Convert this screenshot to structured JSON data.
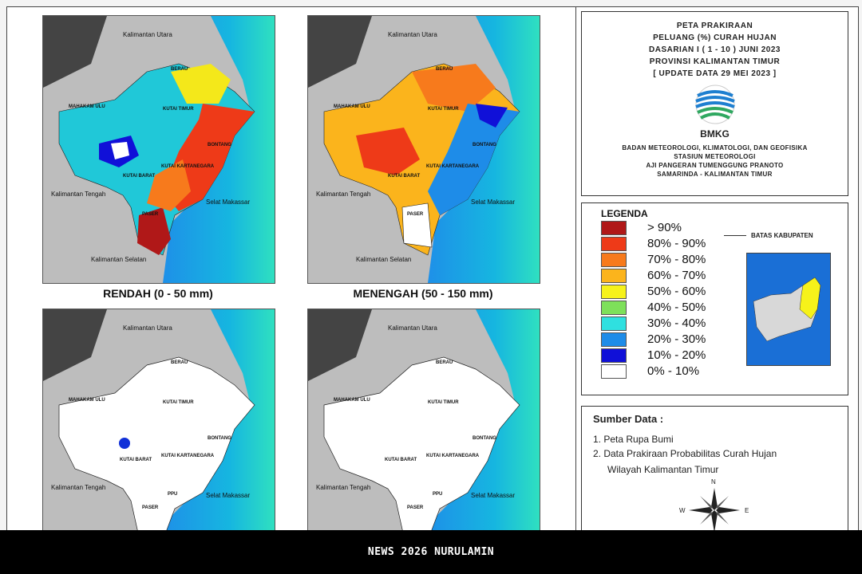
{
  "maps": {
    "kalimantan_utara": "Kalimantan Utara",
    "kalimantan_tengah": "Kalimantan Tengah",
    "kalimantan_selatan": "Kalimantan Selatan",
    "selat_makassar": "Selat Makassar",
    "berau": "BERAU",
    "mahakam_ulu": "MAHAKAM ULU",
    "kutai_timur": "KUTAI TIMUR",
    "kutai_kartanegara": "KUTAI KARTANEGARA",
    "kutai_barat": "KUTAI BARAT",
    "bontang": "BONTANG",
    "paser": "PASER",
    "ppu": "PPU",
    "caption_rendah": "RENDAH (0 - 50 mm)",
    "caption_menengah": "MENENGAH (50 - 150 mm)"
  },
  "title": {
    "line1": "PETA PRAKIRAAN",
    "line2": "PELUANG (%) CURAH HUJAN",
    "line3": "DASARIAN I ( 1 - 10 ) JUNI 2023",
    "line4": "PROVINSI KALIMANTAN TIMUR",
    "line5": "[ UPDATE DATA 29 MEI 2023 ]",
    "logo_text": "BMKG",
    "inst1": "BADAN METEOROLOGI, KLIMATOLOGI, DAN GEOFISIKA",
    "inst2": "STASIUN METEOROLOGI",
    "inst3": "AJI PANGERAN TUMENGGUNG PRANOTO",
    "inst4": "SAMARINDA - KALIMANTAN TIMUR"
  },
  "legend": {
    "title": "LEGENDA",
    "batas": "BATAS KABUPATEN",
    "items": [
      {
        "label": "> 90%",
        "color": "#b01818"
      },
      {
        "label": "80% - 90%",
        "color": "#ee3a18"
      },
      {
        "label": "70% - 80%",
        "color": "#f77a1c"
      },
      {
        "label": "60% - 70%",
        "color": "#fbb41c"
      },
      {
        "label": "50% - 60%",
        "color": "#f6f21a"
      },
      {
        "label": "40% - 50%",
        "color": "#7ee05a"
      },
      {
        "label": "30% - 40%",
        "color": "#2fe0e0"
      },
      {
        "label": "20% - 30%",
        "color": "#1e8ce8"
      },
      {
        "label": "10% - 20%",
        "color": "#1010d8"
      },
      {
        "label": "0% - 10%",
        "color": "#ffffff"
      }
    ]
  },
  "source": {
    "title": "Sumber Data :",
    "item1": "1. Peta Rupa Bumi",
    "item2": "2. Data Prakiraan Probabilitas Curah Hujan",
    "item2b": "Wilayah Kalimantan Timur",
    "n": "N",
    "w": "W",
    "e": "E"
  },
  "footer": {
    "text": "NEWS 2026 NURULAMIN"
  }
}
